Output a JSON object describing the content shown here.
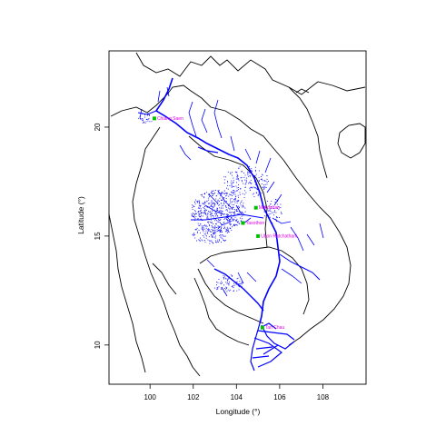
{
  "chart_data": {
    "type": "map",
    "x_axis": {
      "label": "Longitude (°)",
      "range": [
        98.1,
        110.0
      ],
      "ticks": [
        100,
        102,
        104,
        106,
        108
      ]
    },
    "y_axis": {
      "label": "Latitude (°)",
      "range": [
        8.2,
        23.5
      ],
      "ticks": [
        10,
        15,
        20
      ]
    },
    "grid": false,
    "layers": {
      "coastline_color": "#000000",
      "river_color": "#0000ff",
      "station_marker_color": "#00c000",
      "station_label_color": "#e000e0"
    },
    "stations": [
      {
        "name": "Chiang Saen",
        "lon": 100.2,
        "lat": 20.4
      },
      {
        "name": "Mukdahan",
        "lon": 104.9,
        "lat": 16.3
      },
      {
        "name": "Yasothon",
        "lon": 104.3,
        "lat": 15.6
      },
      {
        "name": "Ubon Ratchathani",
        "lon": 105.0,
        "lat": 15.0
      },
      {
        "name": "Tan Chau",
        "lon": 105.2,
        "lat": 10.8
      }
    ]
  }
}
